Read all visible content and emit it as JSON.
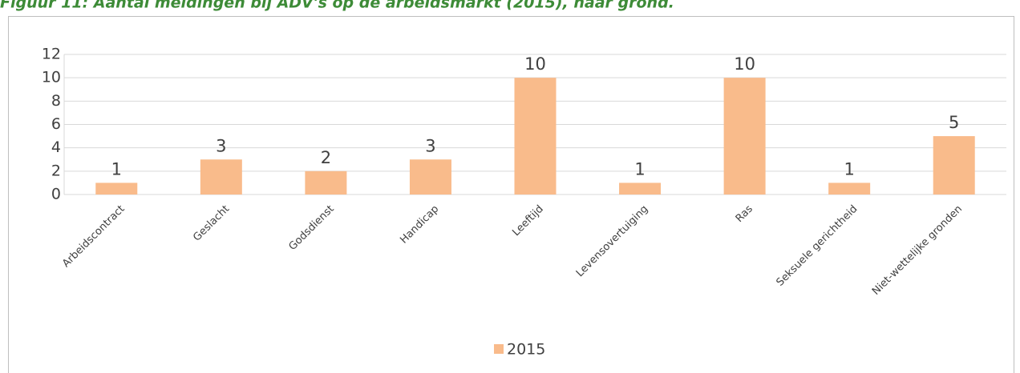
{
  "chart_data": {
    "type": "bar",
    "title": "Figuur 11: Aantal meldingen bij ADV's op de arbeidsmarkt (2015), naar grond.",
    "categories": [
      "Arbeidscontract",
      "Geslacht",
      "Godsdienst",
      "Handicap",
      "Leeftijd",
      "Levensovertuiging",
      "Ras",
      "Seksuele gerichtheid",
      "Niet-wettelijke gronden"
    ],
    "series": [
      {
        "name": "2015",
        "color": "#f9bb8b",
        "values": [
          1,
          3,
          2,
          3,
          10,
          1,
          10,
          1,
          5
        ]
      }
    ],
    "ylim": [
      0,
      12
    ],
    "yticks": [
      0,
      2,
      4,
      6,
      8,
      10,
      12
    ],
    "grid": true,
    "legend": "bottom"
  }
}
